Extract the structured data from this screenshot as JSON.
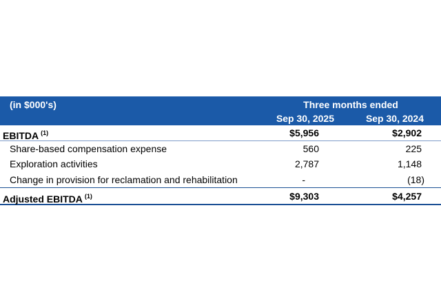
{
  "header": {
    "unit_label": "(in $000's)",
    "group_label": "Three months ended",
    "columns": [
      "Sep 30, 2025",
      "Sep 30, 2024"
    ]
  },
  "rows": [
    {
      "label": "EBITDA",
      "note": "(1)",
      "values": [
        "$5,956",
        "$2,902"
      ]
    },
    {
      "label": "Share-based compensation expense",
      "values": [
        "560",
        "225"
      ]
    },
    {
      "label": "Exploration activities",
      "values": [
        "2,787",
        "1,148"
      ]
    },
    {
      "label": "Change in provision for reclamation and rehabilitation",
      "values": [
        "-",
        "(18)"
      ]
    },
    {
      "label": "Adjusted EBITDA",
      "note": "(1)",
      "values": [
        "$9,303",
        "$4,257"
      ]
    }
  ]
}
